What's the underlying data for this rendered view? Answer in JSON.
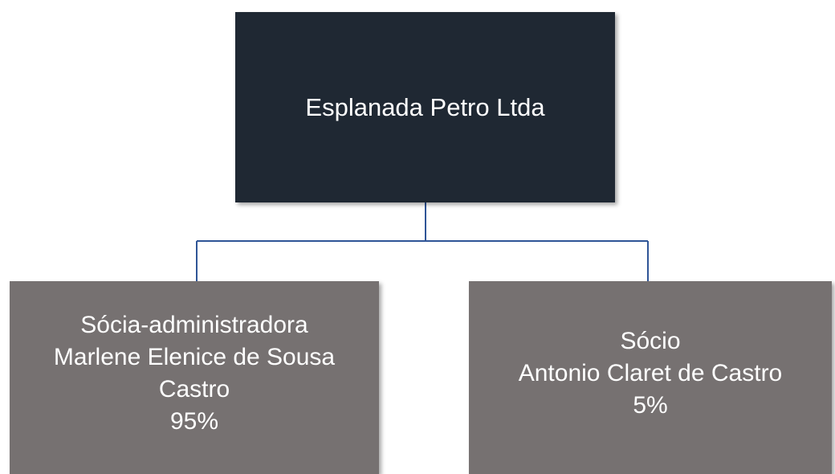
{
  "nodes": [
    {
      "label": "Esplanada Petro Ltda"
    },
    {
      "role": "Sócia-administradora",
      "name": "Marlene Elenice de Sousa Castro",
      "share": "95%"
    },
    {
      "role": "Sócio",
      "name": "Antonio Claret de Castro",
      "share": "5%"
    }
  ]
}
